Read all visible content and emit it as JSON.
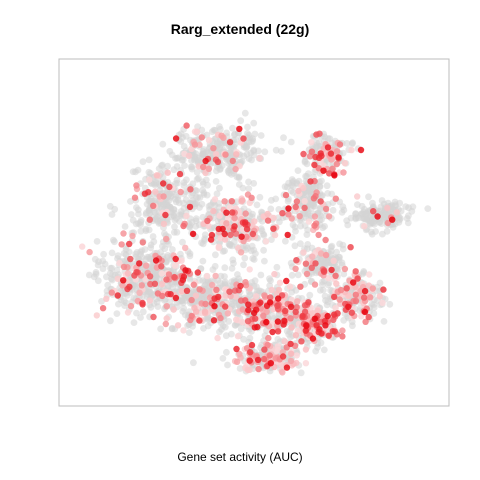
{
  "chart_data": {
    "type": "scatter",
    "title": "Rarg_extended (22g)",
    "xlabel": "Gene set activity (AUC)",
    "ylabel": "",
    "axes_visible": false,
    "grid": false,
    "background_color": "#d3d3d3",
    "color_scale": {
      "low": "#ffffff",
      "high": "#e8000b"
    },
    "clusters": [
      {
        "cx": 0.2,
        "cy": 0.62,
        "sx": 0.12,
        "sy": 0.1,
        "n": 420,
        "red": 0.18
      },
      {
        "cx": 0.38,
        "cy": 0.7,
        "sx": 0.12,
        "sy": 0.08,
        "n": 380,
        "red": 0.2
      },
      {
        "cx": 0.55,
        "cy": 0.72,
        "sx": 0.1,
        "sy": 0.07,
        "n": 300,
        "red": 0.35
      },
      {
        "cx": 0.66,
        "cy": 0.77,
        "sx": 0.06,
        "sy": 0.05,
        "n": 220,
        "red": 0.45
      },
      {
        "cx": 0.45,
        "cy": 0.47,
        "sx": 0.1,
        "sy": 0.08,
        "n": 300,
        "red": 0.25
      },
      {
        "cx": 0.25,
        "cy": 0.4,
        "sx": 0.09,
        "sy": 0.09,
        "n": 260,
        "red": 0.12
      },
      {
        "cx": 0.4,
        "cy": 0.25,
        "sx": 0.12,
        "sy": 0.07,
        "n": 280,
        "red": 0.12
      },
      {
        "cx": 0.65,
        "cy": 0.4,
        "sx": 0.06,
        "sy": 0.08,
        "n": 180,
        "red": 0.2
      },
      {
        "cx": 0.68,
        "cy": 0.58,
        "sx": 0.06,
        "sy": 0.05,
        "n": 160,
        "red": 0.2
      },
      {
        "cx": 0.85,
        "cy": 0.44,
        "sx": 0.07,
        "sy": 0.04,
        "n": 160,
        "red": 0.05
      },
      {
        "cx": 0.78,
        "cy": 0.69,
        "sx": 0.07,
        "sy": 0.06,
        "n": 200,
        "red": 0.4
      },
      {
        "cx": 0.54,
        "cy": 0.87,
        "sx": 0.08,
        "sy": 0.04,
        "n": 200,
        "red": 0.4
      },
      {
        "cx": 0.7,
        "cy": 0.25,
        "sx": 0.06,
        "sy": 0.05,
        "n": 150,
        "red": 0.3
      }
    ]
  }
}
